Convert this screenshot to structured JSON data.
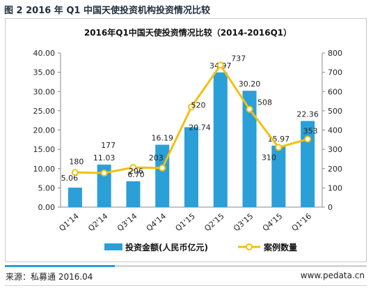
{
  "figure_title": "图 2 2016 年 Q1 中国天使投资机构投资情况比较",
  "source_text": "来源：私募通 2016.04",
  "website_text": "www.pedata.cn",
  "colors": {
    "bar": "#2a9fd8",
    "line": "#f2c10f",
    "marker_fill": "#ffffff"
  },
  "chart_data": {
    "type": "bar+line",
    "title": "2016年Q1中国天使投资情况比较（2014-2016Q1）",
    "categories": [
      "Q1'14",
      "Q2'14",
      "Q3'14",
      "Q4'14",
      "Q1'15",
      "Q2'15",
      "Q3'15",
      "Q4'15",
      "Q1'16"
    ],
    "series": [
      {
        "name": "投资金额(人民币亿元)",
        "type": "bar",
        "axis": "left",
        "values": [
          5.06,
          11.03,
          6.7,
          16.19,
          20.74,
          34.97,
          30.2,
          15.97,
          22.36
        ],
        "labels": [
          "5.06",
          "11.03",
          "6.70",
          "16.19",
          "20.74",
          "34.97",
          "30.20",
          "15.97",
          "22.36"
        ]
      },
      {
        "name": "案例数量",
        "type": "line",
        "axis": "right",
        "values": [
          180,
          177,
          206,
          203,
          520,
          737,
          508,
          310,
          353
        ],
        "labels": [
          "180",
          "177",
          "206",
          "203",
          "520",
          "737",
          "508",
          "310",
          "353"
        ]
      }
    ],
    "y_left": {
      "min": 0,
      "max": 40,
      "ticks": [
        "0.00",
        "5.00",
        "10.00",
        "15.00",
        "20.00",
        "25.00",
        "30.00",
        "35.00",
        "40.00"
      ]
    },
    "y_right": {
      "min": 0,
      "max": 800,
      "ticks": [
        "0",
        "100",
        "200",
        "300",
        "400",
        "500",
        "600",
        "700",
        "800"
      ]
    },
    "grid": false,
    "legend": "bottom"
  }
}
